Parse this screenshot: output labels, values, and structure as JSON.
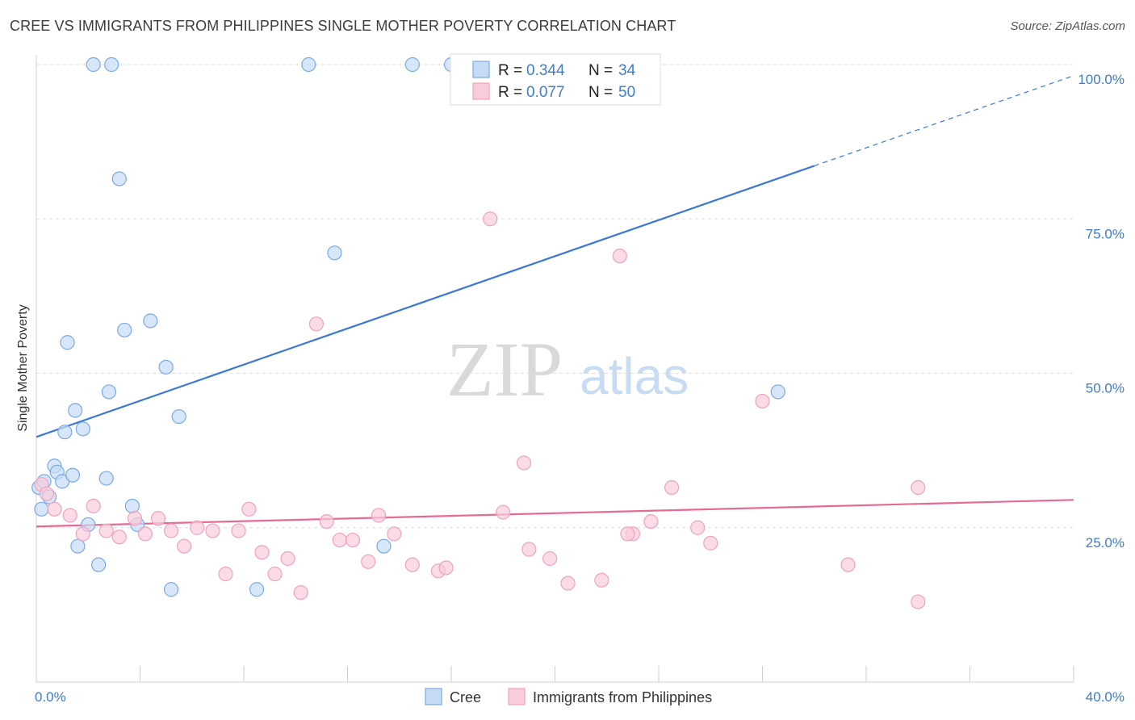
{
  "title": "CREE VS IMMIGRANTS FROM PHILIPPINES SINGLE MOTHER POVERTY CORRELATION CHART",
  "source": "Source: ZipAtlas.com",
  "watermark": {
    "zip": "ZIP",
    "atlas": "atlas"
  },
  "chart_data": {
    "type": "scatter",
    "ylabel": "Single Mother Poverty",
    "xlim": [
      0,
      40
    ],
    "ylim": [
      0,
      100
    ],
    "x_tick_labels": {
      "left": "0.0%",
      "right": "40.0%"
    },
    "y_ticks": [
      {
        "value": 25,
        "label": "25.0%"
      },
      {
        "value": 50,
        "label": "50.0%"
      },
      {
        "value": 75,
        "label": "75.0%"
      },
      {
        "value": 100,
        "label": "100.0%"
      }
    ],
    "grid": "horizontal dashed",
    "legend_position": "top-center",
    "series": [
      {
        "name": "Cree",
        "color": "#3a78d4",
        "fill": "#c6dbf5",
        "stroke": "#7aaae6",
        "R": "0.344",
        "N": "34",
        "trend": {
          "x0": 0,
          "y0": 39.7,
          "x1": 30,
          "y1": 83.6,
          "dash_x1": 40,
          "dash_y1": 98.2
        },
        "points": [
          [
            0.1,
            31.5
          ],
          [
            0.2,
            28.0
          ],
          [
            0.3,
            32.5
          ],
          [
            0.5,
            30.0
          ],
          [
            0.7,
            35.0
          ],
          [
            0.8,
            34.0
          ],
          [
            1.0,
            32.5
          ],
          [
            1.1,
            40.5
          ],
          [
            1.4,
            33.5
          ],
          [
            1.5,
            44.0
          ],
          [
            1.6,
            22.0
          ],
          [
            1.8,
            41.0
          ],
          [
            2.0,
            25.5
          ],
          [
            2.2,
            100.0
          ],
          [
            2.4,
            19.0
          ],
          [
            2.7,
            33.0
          ],
          [
            2.8,
            47.0
          ],
          [
            2.9,
            100.0
          ],
          [
            3.2,
            81.5
          ],
          [
            3.4,
            57.0
          ],
          [
            3.7,
            28.5
          ],
          [
            3.9,
            25.5
          ],
          [
            4.4,
            58.5
          ],
          [
            5.0,
            51.0
          ],
          [
            5.2,
            15.0
          ],
          [
            5.5,
            43.0
          ],
          [
            8.5,
            15.0
          ],
          [
            10.5,
            100.0
          ],
          [
            11.5,
            69.5
          ],
          [
            13.4,
            22.0
          ],
          [
            14.5,
            100.0
          ],
          [
            16.0,
            100.0
          ],
          [
            28.6,
            47.0
          ],
          [
            1.2,
            55.0
          ]
        ]
      },
      {
        "name": "Immigrants from Philippines",
        "color": "#e56b93",
        "fill": "#f9ccdb",
        "stroke": "#eea3bc",
        "R": "0.077",
        "N": "50",
        "trend": {
          "x0": 0,
          "y0": 25.2,
          "x1": 40,
          "y1": 29.5
        },
        "points": [
          [
            0.2,
            32.0
          ],
          [
            0.4,
            30.5
          ],
          [
            0.7,
            28.0
          ],
          [
            1.3,
            27.0
          ],
          [
            1.8,
            24.0
          ],
          [
            2.2,
            28.5
          ],
          [
            2.7,
            24.5
          ],
          [
            3.2,
            23.5
          ],
          [
            3.8,
            26.5
          ],
          [
            4.2,
            24.0
          ],
          [
            4.7,
            26.5
          ],
          [
            5.2,
            24.5
          ],
          [
            5.7,
            22.0
          ],
          [
            6.2,
            25.0
          ],
          [
            6.8,
            24.5
          ],
          [
            7.3,
            17.5
          ],
          [
            7.8,
            24.5
          ],
          [
            8.2,
            28.0
          ],
          [
            8.7,
            21.0
          ],
          [
            9.2,
            17.5
          ],
          [
            9.7,
            20.0
          ],
          [
            10.2,
            14.5
          ],
          [
            10.8,
            58.0
          ],
          [
            11.2,
            26.0
          ],
          [
            11.7,
            23.0
          ],
          [
            12.2,
            23.0
          ],
          [
            12.8,
            19.5
          ],
          [
            13.2,
            27.0
          ],
          [
            13.8,
            24.0
          ],
          [
            14.5,
            19.0
          ],
          [
            15.5,
            18.0
          ],
          [
            15.8,
            18.5
          ],
          [
            17.5,
            75.0
          ],
          [
            18.0,
            27.5
          ],
          [
            18.8,
            35.5
          ],
          [
            19.0,
            21.5
          ],
          [
            19.8,
            20.0
          ],
          [
            20.5,
            16.0
          ],
          [
            21.8,
            16.5
          ],
          [
            22.5,
            69.0
          ],
          [
            23.0,
            24.0
          ],
          [
            23.7,
            26.0
          ],
          [
            24.5,
            31.5
          ],
          [
            25.5,
            25.0
          ],
          [
            26.0,
            22.5
          ],
          [
            28.0,
            45.5
          ],
          [
            31.3,
            19.0
          ],
          [
            34.0,
            31.5
          ],
          [
            34.0,
            13.0
          ],
          [
            22.8,
            24.0
          ]
        ]
      }
    ]
  }
}
